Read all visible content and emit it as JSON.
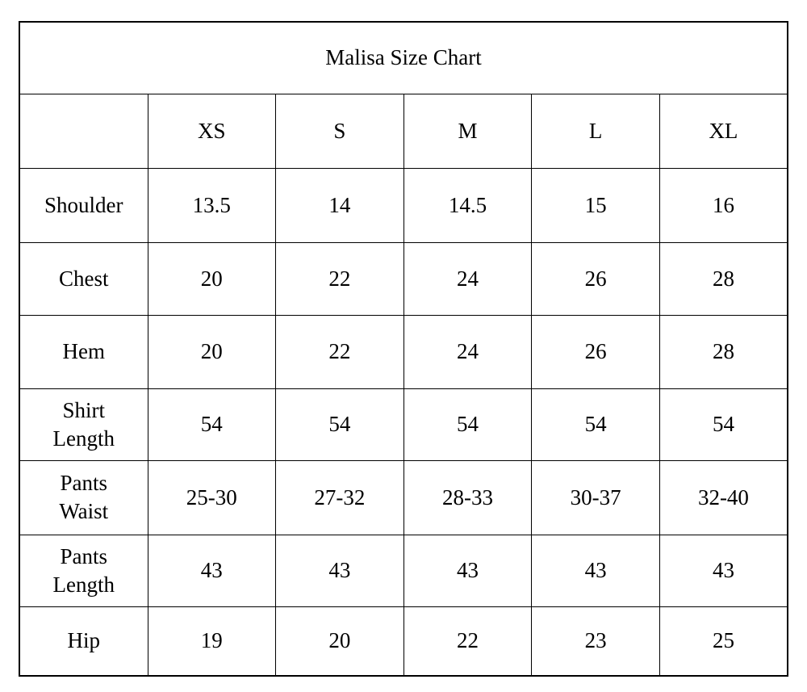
{
  "title": "Malisa Size Chart",
  "sizes": [
    "XS",
    "S",
    "M",
    "L",
    "XL"
  ],
  "rows": [
    {
      "label": "Shoulder",
      "values": [
        "13.5",
        "14",
        "14.5",
        "15",
        "16"
      ]
    },
    {
      "label": "Chest",
      "values": [
        "20",
        "22",
        "24",
        "26",
        "28"
      ]
    },
    {
      "label": "Hem",
      "values": [
        "20",
        "22",
        "24",
        "26",
        "28"
      ]
    },
    {
      "label": "Shirt Length",
      "values": [
        "54",
        "54",
        "54",
        "54",
        "54"
      ]
    },
    {
      "label": "Pants Waist",
      "values": [
        "25-30",
        "27-32",
        "28-33",
        "30-37",
        "32-40"
      ]
    },
    {
      "label": "Pants Length",
      "values": [
        "43",
        "43",
        "43",
        "43",
        "43"
      ]
    },
    {
      "label": "Hip",
      "values": [
        "19",
        "20",
        "22",
        "23",
        "25"
      ]
    }
  ]
}
